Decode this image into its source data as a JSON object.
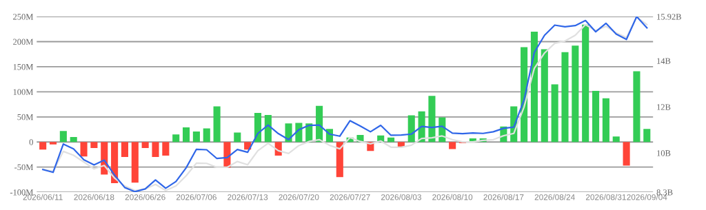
{
  "chart_data": {
    "type": "bar",
    "categories": [
      "2026/06/11",
      null,
      null,
      null,
      null,
      "2026/06/18",
      null,
      null,
      null,
      null,
      "2026/06/26",
      null,
      null,
      null,
      null,
      "2026/07/06",
      null,
      null,
      null,
      null,
      "2026/07/13",
      null,
      null,
      null,
      null,
      "2026/07/20",
      null,
      null,
      null,
      null,
      "2026/07/27",
      null,
      null,
      null,
      null,
      "2026/08/03",
      null,
      null,
      null,
      null,
      "2026/08/10",
      null,
      null,
      null,
      null,
      "2026/08/17",
      null,
      null,
      null,
      null,
      "2026/08/24",
      null,
      null,
      null,
      null,
      "2026/08/31",
      null,
      null,
      null,
      "2026/09/04"
    ],
    "series": [
      {
        "values": [
          -15,
          -5,
          22,
          10,
          -29,
          -12,
          -65,
          -82,
          -30,
          -81,
          -12,
          -30,
          -27,
          15,
          29,
          21,
          27,
          71,
          -51,
          19,
          -15,
          58,
          54,
          -27,
          37,
          38,
          37,
          72,
          26,
          -70,
          9,
          14,
          -18,
          13,
          9,
          -10,
          53,
          61,
          92,
          49,
          -14,
          -2,
          7,
          7,
          0,
          31,
          71,
          189,
          220,
          185,
          115,
          179,
          192,
          234,
          102,
          87,
          11,
          -47,
          141,
          26
        ],
        "colors": [
          "#ff4438",
          "#ff4438",
          "#33cc55",
          "#33cc55",
          "#ff4438",
          "#ff4438",
          "#ff4438",
          "#ff4438",
          "#ff4438",
          "#ff4438",
          "#ff4438",
          "#ff4438",
          "#ff4438",
          "#33cc55",
          "#33cc55",
          "#33cc55",
          "#33cc55",
          "#33cc55",
          "#ff4438",
          "#33cc55",
          "#ff4438",
          "#33cc55",
          "#33cc55",
          "#ff4438",
          "#33cc55",
          "#33cc55",
          "#33cc55",
          "#33cc55",
          "#33cc55",
          "#ff4438",
          "#33cc55",
          "#33cc55",
          "#ff4438",
          "#33cc55",
          "#33cc55",
          "#ff4438",
          "#33cc55",
          "#33cc55",
          "#33cc55",
          "#33cc55",
          "#ff4438",
          "#ff4438",
          "#33cc55",
          "#33cc55",
          "#33cc55",
          "#33cc55",
          "#33cc55",
          "#33cc55",
          "#33cc55",
          "#33cc55",
          "#33cc55",
          "#33cc55",
          "#33cc55",
          "#33cc55",
          "#33cc55",
          "#33cc55",
          "#33cc55",
          "#ff4438",
          "#33cc55",
          "#33cc55"
        ]
      },
      {
        "type": "line",
        "axis": "y2",
        "color": "#e0e0e0",
        "values": [
          9.3,
          9.2,
          10.07,
          9.9,
          9.61,
          9.31,
          9.46,
          8.91,
          8.57,
          8.37,
          8.44,
          8.64,
          8.37,
          8.57,
          9.01,
          9.56,
          9.55,
          9.38,
          9.38,
          9.63,
          9.49,
          10.1,
          10.42,
          10.1,
          9.98,
          10.32,
          10.5,
          10.58,
          10.33,
          10.18,
          10.67,
          10.5,
          10.4,
          10.52,
          10.25,
          10.25,
          10.34,
          10.63,
          10.66,
          10.74,
          10.58,
          10.48,
          10.48,
          10.55,
          10.58,
          10.75,
          10.85,
          11.99,
          13.67,
          14.34,
          14.76,
          14.86,
          15.11,
          15.57,
          15.31,
          15.5,
          15.21,
          15.01,
          15.9,
          15.57
        ]
      },
      {
        "type": "line",
        "axis": "y2",
        "color": "#2f66e8",
        "values": [
          9.28,
          9.16,
          10.39,
          10.18,
          9.71,
          9.48,
          9.69,
          9.04,
          8.5,
          8.32,
          8.44,
          8.83,
          8.47,
          8.76,
          9.36,
          10.16,
          10.14,
          9.76,
          9.8,
          10.15,
          10.03,
          10.85,
          11.21,
          10.84,
          10.58,
          11.01,
          11.2,
          11.21,
          10.82,
          10.73,
          11.4,
          11.17,
          10.92,
          11.2,
          10.77,
          10.78,
          10.82,
          11.15,
          11.11,
          11.16,
          10.86,
          10.84,
          10.87,
          10.85,
          10.92,
          11.07,
          11.12,
          12.3,
          14.36,
          15.11,
          15.55,
          15.48,
          15.53,
          15.75,
          15.26,
          15.63,
          15.16,
          14.93,
          15.92,
          15.43
        ]
      }
    ],
    "ylim": [
      -100,
      250
    ],
    "yticks": [
      {
        "value": -100,
        "label": "-100M"
      },
      {
        "value": -50,
        "label": "-50M"
      },
      0,
      {
        "value": 50,
        "label": "50M"
      },
      {
        "value": 100,
        "label": "100M"
      },
      {
        "value": 150,
        "label": "150M"
      },
      {
        "value": 200,
        "label": "200M"
      },
      {
        "value": 250,
        "label": "250M"
      }
    ],
    "y2lim": [
      8.3,
      15.92
    ],
    "y2ticks": [
      {
        "value": 8.3,
        "label": "8.3B"
      },
      {
        "value": 10,
        "label": "10B"
      },
      {
        "value": 12,
        "label": "12B"
      },
      {
        "value": 14,
        "label": "14B"
      },
      {
        "value": 15.92,
        "label": "15.92B"
      }
    ],
    "grid": "y",
    "legend": false
  }
}
